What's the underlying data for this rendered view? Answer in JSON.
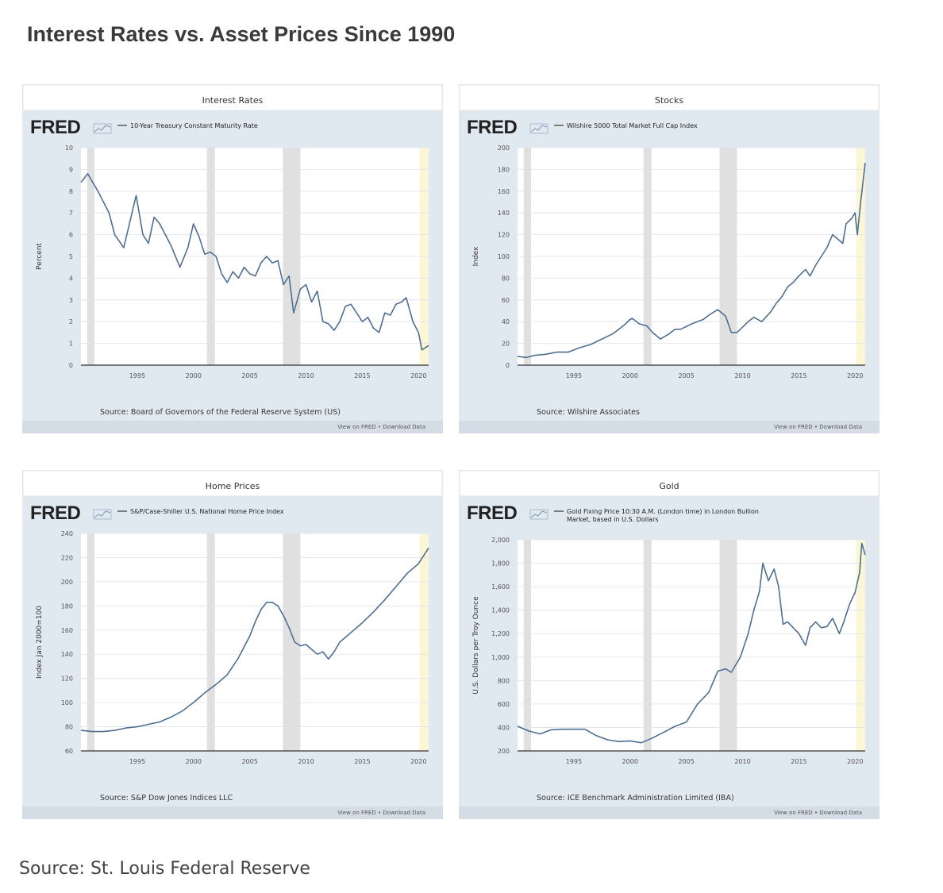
{
  "page": {
    "title": "Interest Rates vs. Asset Prices Since 1990",
    "source": "Source: St. Louis Federal Reserve"
  },
  "colors": {
    "panel_bg": "#e1e9f0",
    "plot_bg": "#ffffff",
    "line": "#4f6f92",
    "recession": "#e0e0e0",
    "latest_highlight": "#fbf7d6"
  },
  "fred_logo": "FRED",
  "footer_links": "View on FRED • Download Data",
  "recessions": [
    [
      1990.55,
      1991.2
    ],
    [
      2001.2,
      2001.9
    ],
    [
      2007.95,
      2009.5
    ]
  ],
  "highlight": [
    2020.1,
    2020.9
  ],
  "chart_data": [
    {
      "type": "line",
      "title": "Interest Rates",
      "legend": "10-Year Treasury Constant Maturity Rate",
      "ylabel": "Percent",
      "source": "Source: Board of Governors of the Federal Reserve System (US)",
      "xlim": [
        1990,
        2020.9
      ],
      "ylim": [
        0,
        10
      ],
      "xticks": [
        1995,
        2000,
        2005,
        2010,
        2015,
        2020
      ],
      "yticks": [
        0,
        1,
        2,
        3,
        4,
        5,
        6,
        7,
        8,
        9,
        10
      ],
      "ytick_labels": [
        "0",
        "1",
        "2",
        "3",
        "4",
        "5",
        "6",
        "7",
        "8",
        "9",
        "10"
      ],
      "x": [
        1990.0,
        1990.6,
        1991.5,
        1992.5,
        1993.0,
        1993.8,
        1994.9,
        1995.5,
        1996.0,
        1996.5,
        1997.0,
        1997.5,
        1998.0,
        1998.8,
        1999.5,
        2000.0,
        2000.5,
        2001.0,
        2001.5,
        2002.0,
        2002.5,
        2003.0,
        2003.5,
        2004.0,
        2004.5,
        2005.0,
        2005.5,
        2006.0,
        2006.5,
        2007.0,
        2007.5,
        2008.0,
        2008.5,
        2008.9,
        2009.5,
        2010.0,
        2010.5,
        2011.0,
        2011.5,
        2012.0,
        2012.5,
        2013.0,
        2013.5,
        2014.0,
        2014.5,
        2015.0,
        2015.5,
        2016.0,
        2016.5,
        2017.0,
        2017.5,
        2018.0,
        2018.5,
        2018.9,
        2019.5,
        2020.0,
        2020.3,
        2020.9
      ],
      "y": [
        8.4,
        8.8,
        8.0,
        7.0,
        6.0,
        5.4,
        7.8,
        6.0,
        5.6,
        6.8,
        6.5,
        6.0,
        5.5,
        4.5,
        5.4,
        6.5,
        5.9,
        5.1,
        5.2,
        5.0,
        4.2,
        3.8,
        4.3,
        4.0,
        4.5,
        4.2,
        4.1,
        4.7,
        5.0,
        4.7,
        4.8,
        3.7,
        4.1,
        2.4,
        3.5,
        3.7,
        2.9,
        3.4,
        2.0,
        1.9,
        1.6,
        2.0,
        2.7,
        2.8,
        2.4,
        2.0,
        2.2,
        1.7,
        1.5,
        2.4,
        2.3,
        2.8,
        2.9,
        3.1,
        2.0,
        1.5,
        0.7,
        0.9
      ]
    },
    {
      "type": "line",
      "title": "Stocks",
      "legend": "Wilshire 5000 Total Market Full Cap Index",
      "ylabel": "Index",
      "source": "Source: Wilshire Associates",
      "xlim": [
        1990,
        2020.9
      ],
      "ylim": [
        0,
        200
      ],
      "xticks": [
        1995,
        2000,
        2005,
        2010,
        2015,
        2020
      ],
      "yticks": [
        0,
        20,
        40,
        60,
        80,
        100,
        120,
        140,
        160,
        180,
        200
      ],
      "ytick_labels": [
        "0",
        "20",
        "40",
        "60",
        "80",
        "100",
        "120",
        "140",
        "160",
        "180",
        "200"
      ],
      "x": [
        1990.0,
        1990.8,
        1991.5,
        1992.5,
        1993.5,
        1994.5,
        1995.5,
        1996.5,
        1997.5,
        1998.5,
        1999.0,
        1999.5,
        2000.0,
        2000.2,
        2000.8,
        2001.5,
        2002.0,
        2002.7,
        2003.5,
        2004.0,
        2004.5,
        2005.5,
        2006.5,
        2007.0,
        2007.8,
        2008.5,
        2009.0,
        2009.5,
        2010.0,
        2010.5,
        2011.0,
        2011.7,
        2012.5,
        2013.0,
        2013.5,
        2014.0,
        2014.5,
        2015.0,
        2015.6,
        2016.0,
        2016.5,
        2017.0,
        2017.5,
        2018.0,
        2018.9,
        2019.2,
        2019.7,
        2020.0,
        2020.2,
        2020.5,
        2020.9
      ],
      "y": [
        8,
        7,
        9,
        10,
        12,
        12,
        16,
        19,
        24,
        29,
        33,
        37,
        42,
        43,
        38,
        36,
        30,
        24,
        29,
        33,
        33,
        38,
        42,
        46,
        51,
        45,
        30,
        30,
        35,
        40,
        44,
        40,
        49,
        57,
        63,
        72,
        76,
        82,
        88,
        82,
        92,
        100,
        108,
        120,
        112,
        130,
        135,
        140,
        120,
        150,
        186
      ]
    },
    {
      "type": "line",
      "title": "Home Prices",
      "legend": "S&P/Case-Shiller U.S. National Home Price Index",
      "ylabel": "Index Jan 2000=100",
      "source": "Source: S&P Dow Jones Indices LLC",
      "xlim": [
        1990,
        2020.9
      ],
      "ylim": [
        60,
        240
      ],
      "xticks": [
        1995,
        2000,
        2005,
        2010,
        2015,
        2020
      ],
      "yticks": [
        60,
        80,
        100,
        120,
        140,
        160,
        180,
        200,
        220,
        240
      ],
      "ytick_labels": [
        "60",
        "80",
        "100",
        "120",
        "140",
        "160",
        "180",
        "200",
        "220",
        "240"
      ],
      "x": [
        1990.0,
        1991.0,
        1992.0,
        1993.0,
        1994.0,
        1995.0,
        1996.0,
        1997.0,
        1998.0,
        1999.0,
        2000.0,
        2001.0,
        2002.0,
        2003.0,
        2004.0,
        2005.0,
        2005.5,
        2006.0,
        2006.5,
        2007.0,
        2007.5,
        2008.0,
        2008.5,
        2009.0,
        2009.5,
        2010.0,
        2010.5,
        2011.0,
        2011.5,
        2012.0,
        2012.5,
        2013.0,
        2014.0,
        2015.0,
        2016.0,
        2017.0,
        2018.0,
        2019.0,
        2020.0,
        2020.9
      ],
      "y": [
        77,
        76,
        76,
        77,
        79,
        80,
        82,
        84,
        88,
        93,
        100,
        108,
        115,
        123,
        137,
        155,
        167,
        177,
        183,
        183,
        180,
        172,
        162,
        150,
        147,
        148,
        144,
        140,
        142,
        136,
        142,
        150,
        158,
        166,
        175,
        185,
        196,
        207,
        215,
        228
      ]
    },
    {
      "type": "line",
      "title": "Gold",
      "legend": "Gold Fixing Price 10:30 A.M. (London time) in London Bullion Market, based in U.S. Dollars",
      "legend_lines": [
        "Gold Fixing Price 10:30 A.M. (London time) in London Bullion",
        "Market, based in U.S. Dollars"
      ],
      "ylabel": "U.S. Dollars per Troy Ounce",
      "source": "Source: ICE Benchmark Administration Limited (IBA)",
      "xlim": [
        1990,
        2020.9
      ],
      "ylim": [
        200,
        2000
      ],
      "xticks": [
        1995,
        2000,
        2005,
        2010,
        2015,
        2020
      ],
      "yticks": [
        200,
        400,
        600,
        800,
        1000,
        1200,
        1400,
        1600,
        1800,
        2000
      ],
      "ytick_labels": [
        "200",
        "400",
        "600",
        "800",
        "1,000",
        "1,200",
        "1,400",
        "1,600",
        "1,800",
        "2,000"
      ],
      "x": [
        1990.0,
        1991.0,
        1992.0,
        1993.0,
        1994.0,
        1995.0,
        1996.0,
        1997.0,
        1998.0,
        1999.0,
        2000.0,
        2001.0,
        2002.0,
        2003.0,
        2004.0,
        2005.0,
        2006.0,
        2007.0,
        2007.8,
        2008.5,
        2009.0,
        2009.8,
        2010.5,
        2011.0,
        2011.5,
        2011.8,
        2012.3,
        2012.8,
        2013.2,
        2013.6,
        2014.0,
        2014.5,
        2015.0,
        2015.6,
        2016.0,
        2016.5,
        2017.0,
        2017.5,
        2018.0,
        2018.6,
        2019.0,
        2019.5,
        2020.0,
        2020.4,
        2020.6,
        2020.9
      ],
      "y": [
        410,
        370,
        345,
        380,
        385,
        385,
        385,
        330,
        295,
        280,
        285,
        270,
        310,
        360,
        410,
        445,
        600,
        700,
        880,
        900,
        870,
        1000,
        1200,
        1400,
        1560,
        1800,
        1650,
        1750,
        1600,
        1280,
        1300,
        1250,
        1200,
        1100,
        1250,
        1300,
        1250,
        1260,
        1330,
        1200,
        1300,
        1450,
        1550,
        1720,
        1970,
        1870
      ]
    }
  ]
}
